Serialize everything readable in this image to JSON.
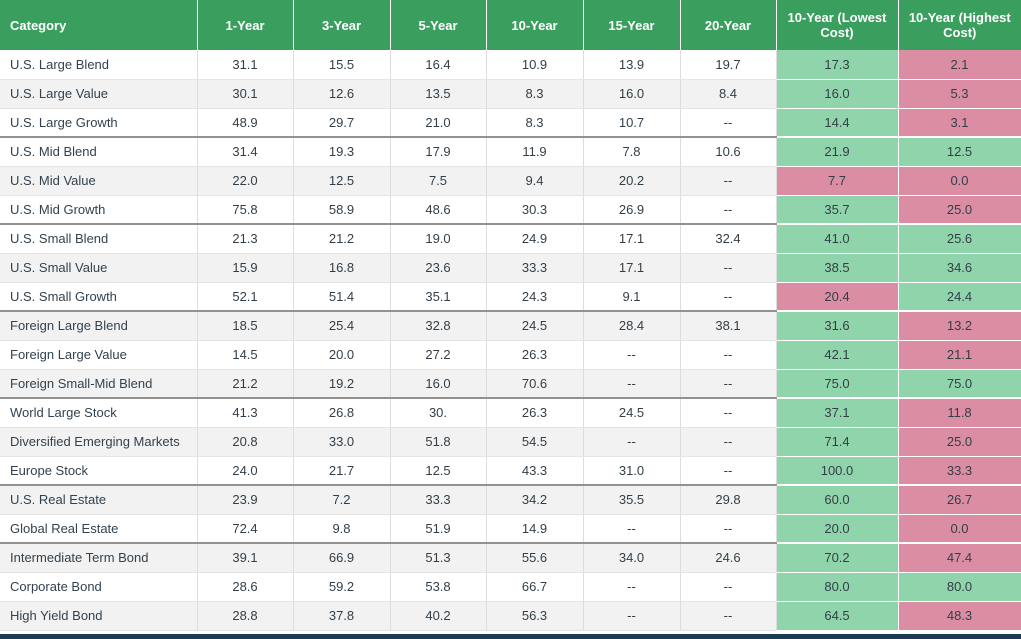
{
  "colors": {
    "header_bg": "#3A9E5F",
    "cell_green": "#90D4AC",
    "cell_pink": "#DB8DA4",
    "row_shaded": "#F2F2F2",
    "group_divider": "#919191",
    "bottom_bar": "#1C3A54"
  },
  "table": {
    "columns": [
      "Category",
      "1-Year",
      "3-Year",
      "5-Year",
      "10-Year",
      "15-Year",
      "20-Year",
      "10-Year (Lowest Cost)",
      "10-Year (Highest Cost)"
    ],
    "rows": [
      {
        "category": "U.S. Large Blend",
        "values": [
          "31.1",
          "15.5",
          "16.4",
          "10.9",
          "13.9",
          "19.7"
        ],
        "lowest": "17.3",
        "lowest_color": "green",
        "highest": "2.1",
        "highest_color": "pink",
        "shaded": false,
        "group_end": false
      },
      {
        "category": "U.S. Large Value",
        "values": [
          "30.1",
          "12.6",
          "13.5",
          "8.3",
          "16.0",
          "8.4"
        ],
        "lowest": "16.0",
        "lowest_color": "green",
        "highest": "5.3",
        "highest_color": "pink",
        "shaded": true,
        "group_end": false
      },
      {
        "category": "U.S. Large Growth",
        "values": [
          "48.9",
          "29.7",
          "21.0",
          "8.3",
          "10.7",
          "--"
        ],
        "lowest": "14.4",
        "lowest_color": "green",
        "highest": "3.1",
        "highest_color": "pink",
        "shaded": false,
        "group_end": true
      },
      {
        "category": "U.S. Mid Blend",
        "values": [
          "31.4",
          "19.3",
          "17.9",
          "11.9",
          "7.8",
          "10.6"
        ],
        "lowest": "21.9",
        "lowest_color": "green",
        "highest": "12.5",
        "highest_color": "green",
        "shaded": false,
        "group_end": false
      },
      {
        "category": "U.S. Mid Value",
        "values": [
          "22.0",
          "12.5",
          "7.5",
          "9.4",
          "20.2",
          "--"
        ],
        "lowest": "7.7",
        "lowest_color": "pink",
        "highest": "0.0",
        "highest_color": "pink",
        "shaded": true,
        "group_end": false
      },
      {
        "category": "U.S. Mid Growth",
        "values": [
          "75.8",
          "58.9",
          "48.6",
          "30.3",
          "26.9",
          "--"
        ],
        "lowest": "35.7",
        "lowest_color": "green",
        "highest": "25.0",
        "highest_color": "pink",
        "shaded": false,
        "group_end": true
      },
      {
        "category": "U.S. Small Blend",
        "values": [
          "21.3",
          "21.2",
          "19.0",
          "24.9",
          "17.1",
          "32.4"
        ],
        "lowest": "41.0",
        "lowest_color": "green",
        "highest": "25.6",
        "highest_color": "green",
        "shaded": false,
        "group_end": false
      },
      {
        "category": "U.S. Small Value",
        "values": [
          "15.9",
          "16.8",
          "23.6",
          "33.3",
          "17.1",
          "--"
        ],
        "lowest": "38.5",
        "lowest_color": "green",
        "highest": "34.6",
        "highest_color": "green",
        "shaded": true,
        "group_end": false
      },
      {
        "category": "U.S. Small Growth",
        "values": [
          "52.1",
          "51.4",
          "35.1",
          "24.3",
          "9.1",
          "--"
        ],
        "lowest": "20.4",
        "lowest_color": "pink",
        "highest": "24.4",
        "highest_color": "green",
        "shaded": false,
        "group_end": true
      },
      {
        "category": "Foreign Large Blend",
        "values": [
          "18.5",
          "25.4",
          "32.8",
          "24.5",
          "28.4",
          "38.1"
        ],
        "lowest": "31.6",
        "lowest_color": "green",
        "highest": "13.2",
        "highest_color": "pink",
        "shaded": true,
        "group_end": false
      },
      {
        "category": "Foreign Large Value",
        "values": [
          "14.5",
          "20.0",
          "27.2",
          "26.3",
          "--",
          "--"
        ],
        "lowest": "42.1",
        "lowest_color": "green",
        "highest": "21.1",
        "highest_color": "pink",
        "shaded": false,
        "group_end": false
      },
      {
        "category": "Foreign Small-Mid Blend",
        "values": [
          "21.2",
          "19.2",
          "16.0",
          "70.6",
          "--",
          "--"
        ],
        "lowest": "75.0",
        "lowest_color": "green",
        "highest": "75.0",
        "highest_color": "green",
        "shaded": true,
        "group_end": true
      },
      {
        "category": "World Large Stock",
        "values": [
          "41.3",
          "26.8",
          "30.",
          "26.3",
          "24.5",
          "--"
        ],
        "lowest": "37.1",
        "lowest_color": "green",
        "highest": "11.8",
        "highest_color": "pink",
        "shaded": false,
        "group_end": false
      },
      {
        "category": "Diversified Emerging Markets",
        "values": [
          "20.8",
          "33.0",
          "51.8",
          "54.5",
          "--",
          "--"
        ],
        "lowest": "71.4",
        "lowest_color": "green",
        "highest": "25.0",
        "highest_color": "pink",
        "shaded": true,
        "group_end": false
      },
      {
        "category": "Europe Stock",
        "values": [
          "24.0",
          "21.7",
          "12.5",
          "43.3",
          "31.0",
          "--"
        ],
        "lowest": "100.0",
        "lowest_color": "green",
        "highest": "33.3",
        "highest_color": "pink",
        "shaded": false,
        "group_end": true
      },
      {
        "category": "U.S. Real Estate",
        "values": [
          "23.9",
          "7.2",
          "33.3",
          "34.2",
          "35.5",
          "29.8"
        ],
        "lowest": "60.0",
        "lowest_color": "green",
        "highest": "26.7",
        "highest_color": "pink",
        "shaded": true,
        "group_end": false
      },
      {
        "category": "Global Real Estate",
        "values": [
          "72.4",
          "9.8",
          "51.9",
          "14.9",
          "--",
          "--"
        ],
        "lowest": "20.0",
        "lowest_color": "green",
        "highest": "0.0",
        "highest_color": "pink",
        "shaded": false,
        "group_end": true
      },
      {
        "category": "Intermediate Term Bond",
        "values": [
          "39.1",
          "66.9",
          "51.3",
          "55.6",
          "34.0",
          "24.6"
        ],
        "lowest": "70.2",
        "lowest_color": "green",
        "highest": "47.4",
        "highest_color": "pink",
        "shaded": true,
        "group_end": false
      },
      {
        "category": "Corporate Bond",
        "values": [
          "28.6",
          "59.2",
          "53.8",
          "66.7",
          "--",
          "--"
        ],
        "lowest": "80.0",
        "lowest_color": "green",
        "highest": "80.0",
        "highest_color": "green",
        "shaded": false,
        "group_end": false
      },
      {
        "category": "High Yield Bond",
        "values": [
          "28.8",
          "37.8",
          "40.2",
          "56.3",
          "--",
          "--"
        ],
        "lowest": "64.5",
        "lowest_color": "green",
        "highest": "48.3",
        "highest_color": "pink",
        "shaded": true,
        "group_end": false
      }
    ]
  }
}
